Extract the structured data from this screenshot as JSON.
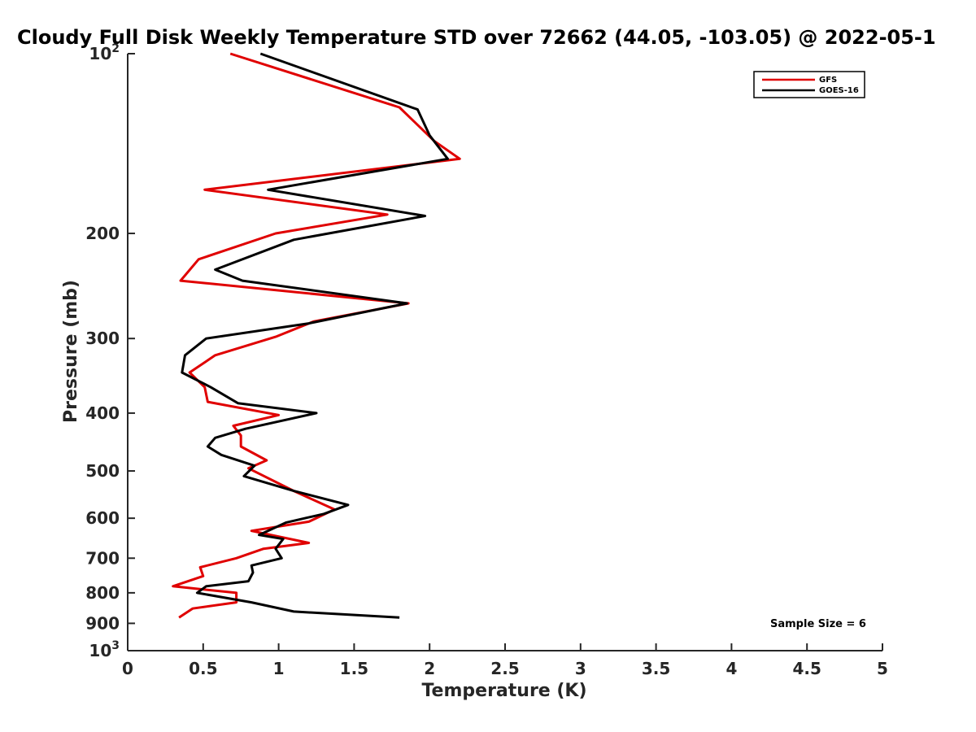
{
  "chart_data": {
    "type": "line",
    "title": "Cloudy Full Disk Weekly Temperature STD over 72662 (44.05, -103.05) @ 2022-05-1",
    "xlabel": "Temperature (K)",
    "ylabel": "Pressure (mb)",
    "xlim": [
      0,
      5
    ],
    "ylim": [
      100,
      1000
    ],
    "y_scale": "log",
    "y_reversed": true,
    "x_ticks": [
      0,
      0.5,
      1,
      1.5,
      2,
      2.5,
      3,
      3.5,
      4,
      4.5,
      5
    ],
    "x_tick_labels": [
      "0",
      "0.5",
      "1",
      "1.5",
      "2",
      "2.5",
      "3",
      "3.5",
      "4",
      "4.5",
      "5"
    ],
    "y_ticks": [
      100,
      200,
      300,
      400,
      500,
      600,
      700,
      800,
      900,
      1000
    ],
    "y_tick_labels": [
      "10^2",
      "200",
      "300",
      "400",
      "500",
      "600",
      "700",
      "800",
      "900",
      "10^3"
    ],
    "grid": false,
    "legend_position": "top-right",
    "annotation": "Sample Size = 6",
    "series": [
      {
        "name": "GFS",
        "color": "#e00000",
        "x": [
          0.68,
          1.8,
          2.03,
          2.2,
          0.51,
          1.72,
          0.98,
          0.47,
          0.35,
          1.86,
          1.23,
          0.98,
          0.58,
          0.41,
          0.51,
          0.53,
          1.0,
          0.7,
          0.75,
          0.75,
          0.92,
          0.8,
          1.1,
          1.37,
          1.2,
          0.82,
          1.2,
          0.9,
          0.72,
          0.48,
          0.5,
          0.3,
          0.72,
          0.72,
          0.43,
          0.34
        ],
        "y": [
          100,
          123,
          140,
          150,
          169,
          186,
          200,
          221,
          240,
          262,
          281,
          298,
          320,
          342,
          362,
          383,
          403,
          420,
          436,
          455,
          480,
          495,
          540,
          580,
          608,
          630,
          660,
          675,
          700,
          725,
          750,
          780,
          800,
          830,
          850,
          880
        ]
      },
      {
        "name": "GOES-16",
        "color": "#000000",
        "x": [
          0.88,
          1.92,
          2.0,
          2.12,
          0.93,
          1.97,
          1.1,
          0.58,
          0.76,
          1.85,
          1.2,
          0.52,
          0.38,
          0.36,
          0.55,
          0.73,
          1.25,
          0.78,
          0.58,
          0.53,
          0.62,
          0.84,
          0.77,
          1.1,
          1.46,
          1.3,
          1.05,
          0.87,
          1.03,
          0.98,
          1.02,
          0.82,
          0.83,
          0.8,
          0.52,
          0.46,
          0.82,
          1.1,
          1.8
        ],
        "y": [
          100,
          124,
          137,
          150,
          169,
          187,
          205,
          230,
          240,
          262,
          283,
          300,
          320,
          342,
          362,
          385,
          400,
          425,
          440,
          455,
          470,
          490,
          510,
          540,
          570,
          590,
          610,
          640,
          650,
          675,
          700,
          720,
          740,
          765,
          780,
          800,
          830,
          860,
          880
        ]
      }
    ]
  }
}
